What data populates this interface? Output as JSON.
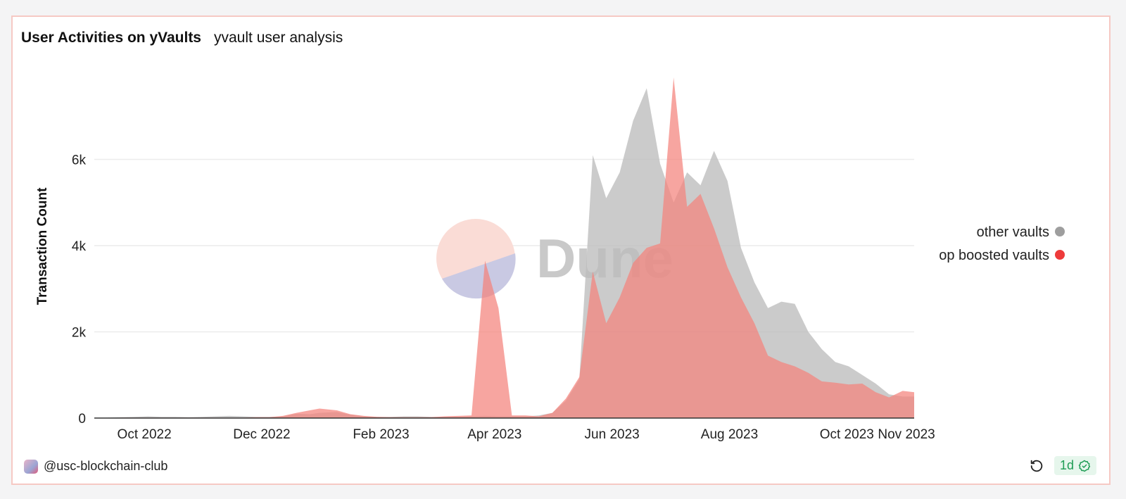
{
  "header": {
    "title": "User Activities on yVaults",
    "subtitle": "yvault user analysis"
  },
  "watermark": {
    "text": "Dune"
  },
  "footer": {
    "author": "@usc-blockchain-club",
    "badge": "1d",
    "refresh_icon": "refresh-icon",
    "verified_icon": "check-badge-icon"
  },
  "colors": {
    "other_vaults": "#bdbdbd",
    "op_boosted_vaults": "#f4827c",
    "legend_other": "#9e9e9e",
    "legend_op": "#ee3b3b"
  },
  "chart_data": {
    "type": "area",
    "title": "User Activities on yVaults",
    "ylabel": "Transaction Count",
    "xlabel": "",
    "ylim": [
      0,
      8000
    ],
    "y_ticks": [
      0,
      2000,
      4000,
      6000
    ],
    "y_tick_labels": [
      "0",
      "2k",
      "4k",
      "6k"
    ],
    "x_ticks": [
      {
        "date": "2022-10-01",
        "label": "Oct 2022"
      },
      {
        "date": "2022-12-01",
        "label": "Dec 2022"
      },
      {
        "date": "2023-02-01",
        "label": "Feb 2023"
      },
      {
        "date": "2023-04-01",
        "label": "Apr 2023"
      },
      {
        "date": "2023-06-01",
        "label": "Jun 2023"
      },
      {
        "date": "2023-08-01",
        "label": "Aug 2023"
      },
      {
        "date": "2023-10-01",
        "label": "Oct 2023"
      },
      {
        "date": "2023-11-01",
        "label": "Nov 2023"
      }
    ],
    "x_range": [
      "2022-09-05",
      "2023-11-05"
    ],
    "grid": true,
    "legend_position": "right",
    "series": [
      {
        "name": "other vaults",
        "points": [
          [
            "2022-09-05",
            0
          ],
          [
            "2022-09-12",
            10
          ],
          [
            "2022-09-19",
            20
          ],
          [
            "2022-09-26",
            30
          ],
          [
            "2022-10-03",
            40
          ],
          [
            "2022-10-10",
            30
          ],
          [
            "2022-10-17",
            30
          ],
          [
            "2022-10-24",
            20
          ],
          [
            "2022-10-31",
            30
          ],
          [
            "2022-11-07",
            40
          ],
          [
            "2022-11-14",
            50
          ],
          [
            "2022-11-21",
            40
          ],
          [
            "2022-11-28",
            30
          ],
          [
            "2022-12-05",
            30
          ],
          [
            "2022-12-12",
            40
          ],
          [
            "2022-12-19",
            100
          ],
          [
            "2022-12-26",
            90
          ],
          [
            "2022-12-31",
            120
          ],
          [
            "2023-01-09",
            140
          ],
          [
            "2023-01-16",
            80
          ],
          [
            "2023-01-23",
            40
          ],
          [
            "2023-01-30",
            30
          ],
          [
            "2023-02-06",
            30
          ],
          [
            "2023-02-13",
            40
          ],
          [
            "2023-02-20",
            40
          ],
          [
            "2023-02-27",
            30
          ],
          [
            "2023-03-06",
            30
          ],
          [
            "2023-03-13",
            30
          ],
          [
            "2023-03-20",
            40
          ],
          [
            "2023-03-27",
            50
          ],
          [
            "2023-04-03",
            40
          ],
          [
            "2023-04-10",
            40
          ],
          [
            "2023-04-17",
            40
          ],
          [
            "2023-04-24",
            60
          ],
          [
            "2023-05-01",
            120
          ],
          [
            "2023-05-08",
            400
          ],
          [
            "2023-05-15",
            900
          ],
          [
            "2023-05-22",
            6100
          ],
          [
            "2023-05-29",
            5100
          ],
          [
            "2023-06-05",
            5700
          ],
          [
            "2023-06-12",
            6900
          ],
          [
            "2023-06-19",
            7650
          ],
          [
            "2023-06-26",
            5900
          ],
          [
            "2023-07-03",
            5000
          ],
          [
            "2023-07-10",
            5700
          ],
          [
            "2023-07-17",
            5400
          ],
          [
            "2023-07-24",
            6200
          ],
          [
            "2023-07-31",
            5500
          ],
          [
            "2023-08-07",
            3950
          ],
          [
            "2023-08-14",
            3150
          ],
          [
            "2023-08-21",
            2550
          ],
          [
            "2023-08-28",
            2700
          ],
          [
            "2023-09-04",
            2650
          ],
          [
            "2023-09-11",
            2000
          ],
          [
            "2023-09-18",
            1600
          ],
          [
            "2023-09-25",
            1300
          ],
          [
            "2023-10-02",
            1200
          ],
          [
            "2023-10-09",
            1000
          ],
          [
            "2023-10-16",
            800
          ],
          [
            "2023-10-23",
            550
          ],
          [
            "2023-10-30",
            500
          ],
          [
            "2023-11-05",
            500
          ]
        ]
      },
      {
        "name": "op boosted vaults",
        "points": [
          [
            "2022-09-05",
            0
          ],
          [
            "2022-09-12",
            0
          ],
          [
            "2022-09-19",
            10
          ],
          [
            "2022-09-26",
            10
          ],
          [
            "2022-10-03",
            10
          ],
          [
            "2022-10-10",
            10
          ],
          [
            "2022-10-17",
            10
          ],
          [
            "2022-10-24",
            10
          ],
          [
            "2022-10-31",
            10
          ],
          [
            "2022-11-07",
            10
          ],
          [
            "2022-11-14",
            10
          ],
          [
            "2022-11-21",
            10
          ],
          [
            "2022-11-28",
            20
          ],
          [
            "2022-12-05",
            20
          ],
          [
            "2022-12-12",
            50
          ],
          [
            "2022-12-19",
            120
          ],
          [
            "2022-12-26",
            180
          ],
          [
            "2022-12-31",
            220
          ],
          [
            "2023-01-09",
            180
          ],
          [
            "2023-01-16",
            90
          ],
          [
            "2023-01-23",
            50
          ],
          [
            "2023-01-30",
            30
          ],
          [
            "2023-02-06",
            20
          ],
          [
            "2023-02-13",
            20
          ],
          [
            "2023-02-20",
            20
          ],
          [
            "2023-02-27",
            20
          ],
          [
            "2023-03-06",
            40
          ],
          [
            "2023-03-13",
            50
          ],
          [
            "2023-03-20",
            60
          ],
          [
            "2023-03-27",
            3650
          ],
          [
            "2023-04-03",
            2550
          ],
          [
            "2023-04-10",
            60
          ],
          [
            "2023-04-17",
            60
          ],
          [
            "2023-04-24",
            40
          ],
          [
            "2023-05-01",
            120
          ],
          [
            "2023-05-08",
            450
          ],
          [
            "2023-05-15",
            950
          ],
          [
            "2023-05-22",
            3400
          ],
          [
            "2023-05-29",
            2200
          ],
          [
            "2023-06-05",
            2800
          ],
          [
            "2023-06-12",
            3600
          ],
          [
            "2023-06-19",
            3950
          ],
          [
            "2023-06-26",
            4050
          ],
          [
            "2023-07-03",
            7900
          ],
          [
            "2023-07-10",
            4900
          ],
          [
            "2023-07-17",
            5200
          ],
          [
            "2023-07-24",
            4400
          ],
          [
            "2023-07-31",
            3500
          ],
          [
            "2023-08-07",
            2800
          ],
          [
            "2023-08-14",
            2200
          ],
          [
            "2023-08-21",
            1450
          ],
          [
            "2023-08-28",
            1300
          ],
          [
            "2023-09-04",
            1200
          ],
          [
            "2023-09-11",
            1050
          ],
          [
            "2023-09-18",
            850
          ],
          [
            "2023-09-25",
            820
          ],
          [
            "2023-10-02",
            780
          ],
          [
            "2023-10-09",
            800
          ],
          [
            "2023-10-16",
            600
          ],
          [
            "2023-10-23",
            480
          ],
          [
            "2023-10-30",
            630
          ],
          [
            "2023-11-05",
            600
          ]
        ]
      }
    ],
    "legend": [
      {
        "name": "other vaults"
      },
      {
        "name": "op boosted vaults"
      }
    ]
  }
}
